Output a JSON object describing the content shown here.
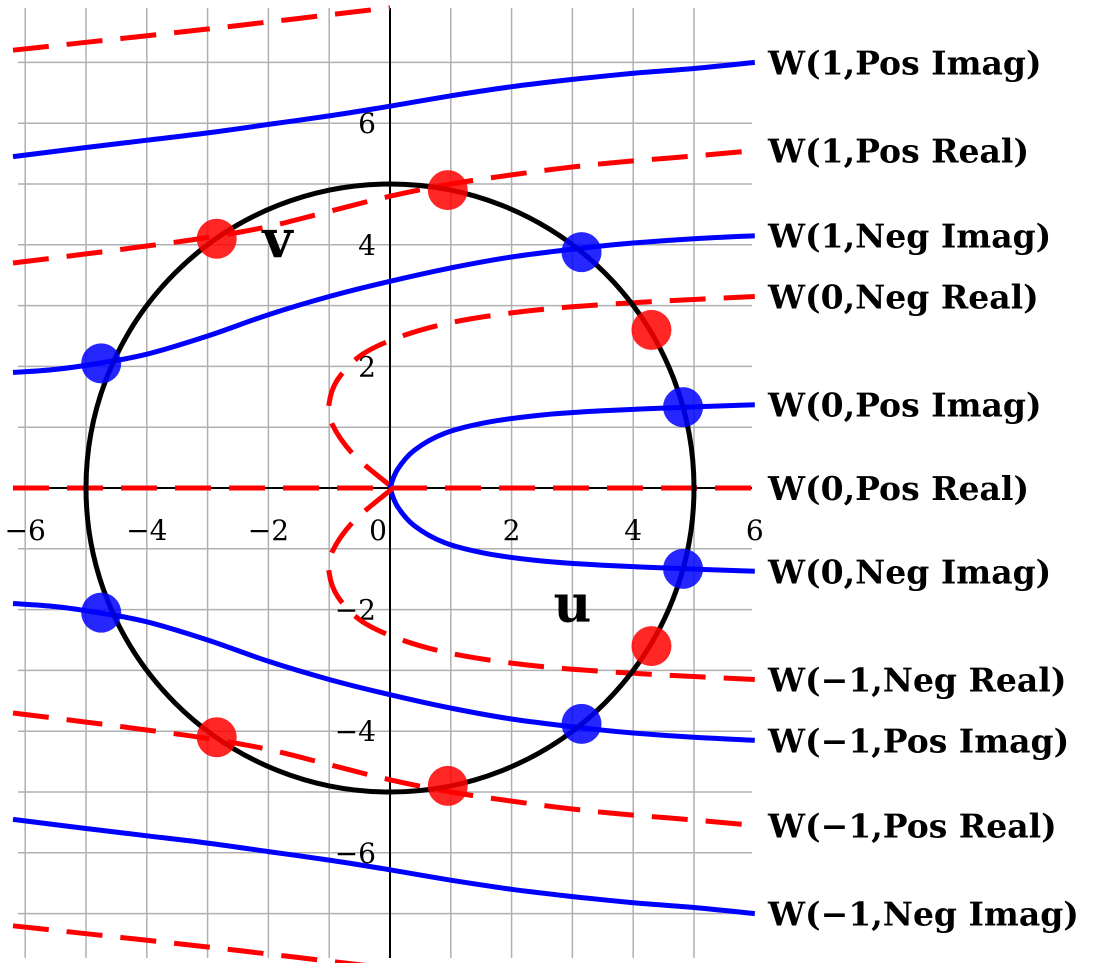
{
  "chart_data": {
    "type": "line",
    "title": "",
    "xlabel": "u",
    "ylabel": "v",
    "xlim": [
      -6.3,
      6.0
    ],
    "ylim": [
      -7.8,
      7.8
    ],
    "grid": true,
    "grid_step": 1,
    "x_ticks": [
      {
        "value": -6,
        "label": "−6"
      },
      {
        "value": -4,
        "label": "−4"
      },
      {
        "value": -2,
        "label": "−2"
      },
      {
        "value": 0,
        "label": "0"
      },
      {
        "value": 2,
        "label": "2"
      },
      {
        "value": 4,
        "label": "4"
      },
      {
        "value": 6,
        "label": "6"
      }
    ],
    "y_ticks": [
      {
        "value": 6,
        "label": "6"
      },
      {
        "value": 4,
        "label": "4"
      },
      {
        "value": 2,
        "label": "2"
      },
      {
        "value": -2,
        "label": "−2"
      },
      {
        "value": -4,
        "label": "−4"
      },
      {
        "value": -6,
        "label": "−6"
      }
    ],
    "circle": {
      "center": [
        0,
        0
      ],
      "radius": 5,
      "color": "#000000"
    },
    "colors": {
      "imag": "#0000ff",
      "real": "#ff0000",
      "circle": "#000000"
    },
    "series": [
      {
        "name": "W(1,Pos Imag)",
        "style": "solid",
        "color": "#0000ff",
        "x": [
          -6.2,
          -5,
          -4,
          -3,
          -2,
          -1,
          0,
          1,
          2,
          3,
          4,
          5,
          6
        ],
        "y": [
          5.45,
          5.6,
          5.72,
          5.84,
          5.98,
          6.12,
          6.28,
          6.45,
          6.6,
          6.72,
          6.82,
          6.9,
          7.0
        ]
      },
      {
        "name": "W(1,Pos Real)",
        "style": "dashed",
        "color": "#ff0000",
        "x": [
          -6.2,
          -5,
          -4,
          -3,
          -2,
          -1,
          0,
          1,
          2,
          3,
          4,
          5,
          6
        ],
        "y": [
          3.7,
          3.85,
          3.98,
          4.12,
          4.3,
          4.55,
          4.8,
          5.0,
          5.15,
          5.28,
          5.38,
          5.46,
          5.55
        ]
      },
      {
        "name": "W(1,Neg Imag)",
        "style": "solid",
        "color": "#0000ff",
        "x": [
          -6.2,
          -5.5,
          -4.8,
          -4,
          -3,
          -2,
          -1,
          0,
          1,
          2,
          3.2,
          4,
          5,
          6
        ],
        "y": [
          1.9,
          1.95,
          2.05,
          2.2,
          2.5,
          2.85,
          3.15,
          3.4,
          3.62,
          3.8,
          3.95,
          4.03,
          4.1,
          4.15
        ]
      },
      {
        "name": "W(0,Neg Real)",
        "style": "dashed",
        "color": "#ff0000",
        "x": [
          0.05,
          -0.6,
          -0.95,
          -1.0,
          -0.85,
          -0.45,
          0.2,
          1.0,
          2.0,
          3.0,
          4.2,
          5.0,
          6.0
        ],
        "y": [
          0.0,
          0.55,
          1.05,
          1.4,
          1.8,
          2.2,
          2.5,
          2.72,
          2.88,
          2.98,
          3.06,
          3.1,
          3.15
        ]
      },
      {
        "name": "W(0,Pos Imag)",
        "style": "solid",
        "color": "#0000ff",
        "x": [
          0,
          0.12,
          0.4,
          0.9,
          1.6,
          2.5,
          3.5,
          4.9,
          6.0
        ],
        "y": [
          0,
          0.3,
          0.62,
          0.9,
          1.08,
          1.2,
          1.27,
          1.33,
          1.37
        ]
      },
      {
        "name": "W(0,Pos Real)",
        "style": "dashed",
        "color": "#ff0000",
        "x": [
          -6.2,
          6.0
        ],
        "y": [
          0,
          0
        ]
      },
      {
        "name": "W(0,Neg Imag)",
        "style": "solid",
        "color": "#0000ff",
        "x": [
          0,
          0.12,
          0.4,
          0.9,
          1.6,
          2.5,
          3.5,
          4.9,
          6.0
        ],
        "y": [
          0,
          -0.3,
          -0.62,
          -0.9,
          -1.08,
          -1.2,
          -1.27,
          -1.33,
          -1.37
        ]
      },
      {
        "name": "W(−1,Neg Real)",
        "style": "dashed",
        "color": "#ff0000",
        "x": [
          0.05,
          -0.6,
          -0.95,
          -1.0,
          -0.85,
          -0.45,
          0.2,
          1.0,
          2.0,
          3.0,
          4.2,
          5.0,
          6.0
        ],
        "y": [
          0.0,
          -0.55,
          -1.05,
          -1.4,
          -1.8,
          -2.2,
          -2.5,
          -2.72,
          -2.88,
          -2.98,
          -3.06,
          -3.1,
          -3.15
        ]
      },
      {
        "name": "W(−1,Pos Imag)",
        "style": "solid",
        "color": "#0000ff",
        "x": [
          -6.2,
          -5.5,
          -4.8,
          -4,
          -3,
          -2,
          -1,
          0,
          1,
          2,
          3.2,
          4,
          5,
          6
        ],
        "y": [
          -1.9,
          -1.95,
          -2.05,
          -2.2,
          -2.5,
          -2.85,
          -3.15,
          -3.4,
          -3.62,
          -3.8,
          -3.95,
          -4.03,
          -4.1,
          -4.15
        ]
      },
      {
        "name": "W(−1,Pos Real)",
        "style": "dashed",
        "color": "#ff0000",
        "x": [
          -6.2,
          -5,
          -4,
          -3,
          -2,
          -1,
          0,
          1,
          2,
          3,
          4,
          5,
          6
        ],
        "y": [
          -3.7,
          -3.85,
          -3.98,
          -4.12,
          -4.3,
          -4.55,
          -4.8,
          -5.0,
          -5.15,
          -5.28,
          -5.38,
          -5.46,
          -5.55
        ]
      },
      {
        "name": "W(−1,Neg Imag)",
        "style": "solid",
        "color": "#0000ff",
        "x": [
          -6.2,
          -5,
          -4,
          -3,
          -2,
          -1,
          0,
          1,
          2,
          3,
          4,
          5,
          6
        ],
        "y": [
          -5.45,
          -5.6,
          -5.72,
          -5.84,
          -5.98,
          -6.12,
          -6.28,
          -6.45,
          -6.6,
          -6.72,
          -6.82,
          -6.9,
          -7.0
        ]
      }
    ],
    "extra_curves": [
      {
        "style": "dashed",
        "color": "#ff0000",
        "x": [
          -6.2,
          -3,
          0
        ],
        "y": [
          7.2,
          7.55,
          7.9
        ]
      },
      {
        "style": "dashed",
        "color": "#ff0000",
        "x": [
          -6.2,
          -3,
          0
        ],
        "y": [
          -7.2,
          -7.55,
          -7.9
        ]
      }
    ],
    "intersection_points": [
      {
        "x": 0.95,
        "y": 4.9,
        "color": "#ff0000"
      },
      {
        "x": -2.85,
        "y": 4.1,
        "color": "#ff0000"
      },
      {
        "x": 3.15,
        "y": 3.88,
        "color": "#0000ff"
      },
      {
        "x": 4.3,
        "y": 2.6,
        "color": "#ff0000"
      },
      {
        "x": -4.75,
        "y": 2.05,
        "color": "#0000ff"
      },
      {
        "x": 4.82,
        "y": 1.33,
        "color": "#0000ff"
      },
      {
        "x": 4.82,
        "y": -1.33,
        "color": "#0000ff"
      },
      {
        "x": 4.3,
        "y": -2.6,
        "color": "#ff0000"
      },
      {
        "x": -4.75,
        "y": -2.05,
        "color": "#0000ff"
      },
      {
        "x": 3.15,
        "y": -3.88,
        "color": "#0000ff"
      },
      {
        "x": -2.85,
        "y": -4.1,
        "color": "#ff0000"
      },
      {
        "x": 0.95,
        "y": -4.9,
        "color": "#ff0000"
      }
    ],
    "annotations": [
      {
        "text": "v",
        "x": -1.85,
        "y": 3.8
      },
      {
        "text": "u",
        "x": 3.0,
        "y": -2.2
      }
    ]
  }
}
